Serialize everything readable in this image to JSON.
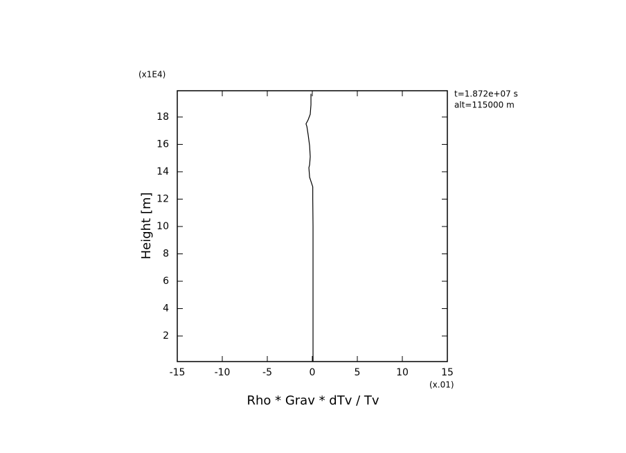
{
  "chart_data": {
    "type": "line",
    "x_label": "Rho * Grav * dTv / Tv",
    "y_label": "Height [m]",
    "x_multiplier": "(x.01)",
    "y_multiplier": "(x1E4)",
    "annotations": [
      "t=1.872e+07 s",
      "alt=115000 m"
    ],
    "color": "#000000",
    "values": [
      0.08,
      0.08,
      0.08,
      0.08,
      0.08,
      0.08,
      0.05,
      0.05,
      -0.15,
      -0.3,
      -0.38,
      -0.3,
      -0.23,
      -0.3,
      -0.46,
      -0.6,
      -0.7,
      -0.46,
      -0.23,
      -0.15,
      -0.15
    ],
    "heights": [
      0.15,
      2,
      4,
      6,
      8,
      10,
      12,
      12.9,
      13.3,
      13.6,
      14.3,
      14.5,
      15.1,
      15.9,
      16.7,
      17.3,
      17.5,
      17.8,
      18.2,
      18.9,
      19.7
    ],
    "xlim": [
      -15,
      15
    ],
    "xticks": [
      -15,
      -10,
      -5,
      0,
      5,
      10,
      15
    ],
    "ylim": [
      0.13,
      19.92
    ],
    "yticks": [
      2,
      4,
      6,
      8,
      10,
      12,
      14,
      16,
      18
    ]
  }
}
